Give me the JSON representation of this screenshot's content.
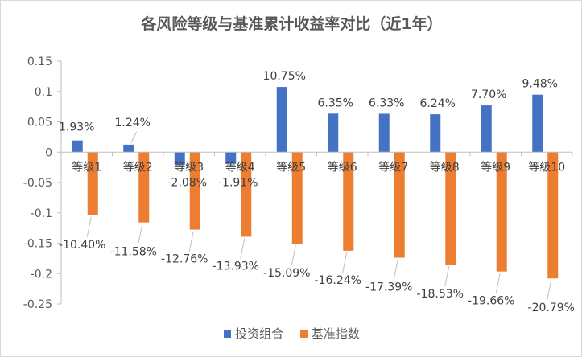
{
  "chart_data": {
    "type": "bar",
    "title": "各风险等级与基准累计收益率对比（近1年）",
    "categories": [
      "等级1",
      "等级2",
      "等级3",
      "等级4",
      "等级5",
      "等级6",
      "等级7",
      "等级8",
      "等级9",
      "等级10"
    ],
    "y_ticks": [
      "0.15",
      "0.1",
      "0.05",
      "0",
      "-0.05",
      "-0.1",
      "-0.15",
      "-0.2",
      "-0.25"
    ],
    "ylim": [
      -0.25,
      0.15
    ],
    "grid": false,
    "legend_position": "bottom",
    "series": [
      {
        "name": "投资组合",
        "color": "#4472c4",
        "values": [
          0.0193,
          0.0124,
          -0.0208,
          -0.0191,
          0.1075,
          0.0635,
          0.0633,
          0.0624,
          0.077,
          0.0948
        ],
        "labels": [
          "1.93%",
          "1.24%",
          "-2.08%",
          "-1.91%",
          "10.75%",
          "6.35%",
          "6.33%",
          "6.24%",
          "7.70%",
          "9.48%"
        ]
      },
      {
        "name": "基准指数",
        "color": "#ed7d31",
        "values": [
          -0.104,
          -0.1158,
          -0.1276,
          -0.1393,
          -0.1509,
          -0.1624,
          -0.1739,
          -0.1853,
          -0.1966,
          -0.2079
        ],
        "labels": [
          "-10.40%",
          "-11.58%",
          "-12.76%",
          "-13.93%",
          "-15.09%",
          "-16.24%",
          "-17.39%",
          "-18.53%",
          "-19.66%",
          "-20.79%"
        ]
      }
    ]
  }
}
